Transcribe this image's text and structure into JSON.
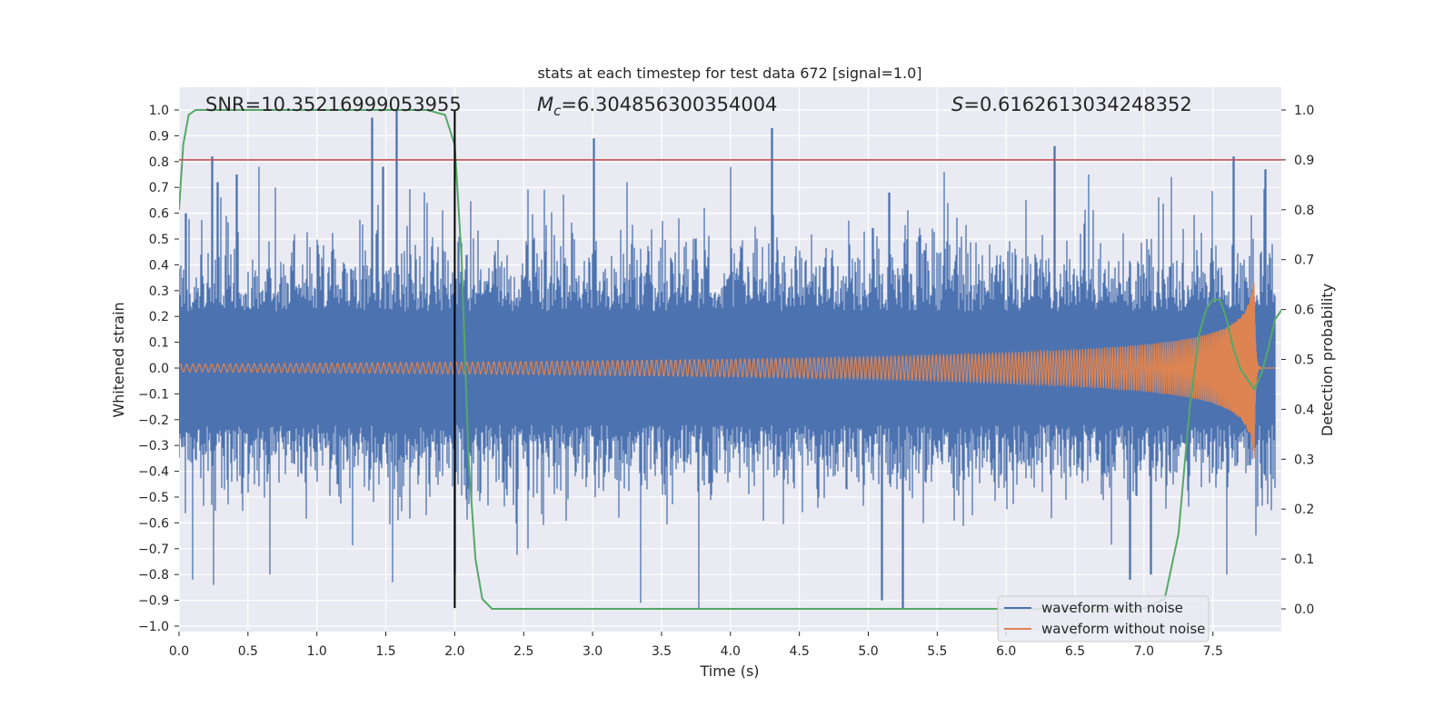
{
  "chart_data": {
    "type": "line",
    "title": "stats at each timestep for test data 672 [signal=1.0]",
    "xlabel": "Time (s)",
    "ylabel_left": "Whitened strain",
    "ylabel_right": "Detection probability",
    "xlim": [
      0.0,
      8.0
    ],
    "ylim_left": [
      -1.05,
      1.05
    ],
    "ylim_right": [
      -0.05,
      1.05
    ],
    "x_ticks": [
      "0.0",
      "0.5",
      "1.0",
      "1.5",
      "2.0",
      "2.5",
      "3.0",
      "3.5",
      "4.0",
      "4.5",
      "5.0",
      "5.5",
      "6.0",
      "6.5",
      "7.0",
      "7.5"
    ],
    "y_left_ticks": [
      "1.0",
      "0.9",
      "0.8",
      "0.7",
      "0.6",
      "0.5",
      "0.4",
      "0.3",
      "0.2",
      "0.1",
      "0.0",
      "−0.1",
      "−0.2",
      "−0.3",
      "−0.4",
      "−0.5",
      "−0.6",
      "−0.7",
      "−0.8",
      "−0.9",
      "−1.0"
    ],
    "y_right_ticks": [
      "1.0",
      "0.9",
      "0.8",
      "0.7",
      "0.6",
      "0.5",
      "0.4",
      "0.3",
      "0.2",
      "0.1",
      "0.0"
    ],
    "grid": true,
    "legend_position": "bottom-right",
    "annotations": {
      "snr": "SNR=10.35216999053955",
      "mc_symbol": "M",
      "mc_sub": "c",
      "mc_value": "=6.304856300354004",
      "s_symbol": "S",
      "s_value": "=0.6162613034248352"
    },
    "series": [
      {
        "name": "waveform with noise",
        "color": "#4c72b0",
        "axis": "left",
        "description_envelope": {
          "typical_pos": 0.4,
          "typical_neg": -0.4,
          "spikes": [
            [
              0.05,
              0.6
            ],
            [
              0.24,
              0.82
            ],
            [
              0.28,
              0.72
            ],
            [
              0.42,
              0.75
            ],
            [
              0.58,
              0.78
            ],
            [
              0.7,
              0.7
            ],
            [
              1.4,
              0.97
            ],
            [
              1.58,
              1.0
            ],
            [
              1.48,
              0.78
            ],
            [
              1.78,
              0.68
            ],
            [
              3.01,
              0.89
            ],
            [
              3.25,
              0.72
            ],
            [
              4.3,
              0.93
            ],
            [
              4.0,
              0.78
            ],
            [
              5.15,
              0.68
            ],
            [
              5.55,
              0.76
            ],
            [
              6.35,
              0.86
            ],
            [
              6.6,
              0.75
            ],
            [
              7.2,
              0.74
            ],
            [
              7.65,
              0.82
            ],
            [
              7.88,
              0.77
            ]
          ],
          "neg_spikes": [
            [
              0.1,
              -0.82
            ],
            [
              0.25,
              -0.84
            ],
            [
              0.66,
              -0.8
            ],
            [
              1.55,
              -0.83
            ],
            [
              2.0,
              -0.8
            ],
            [
              3.35,
              -0.91
            ],
            [
              3.77,
              -0.93
            ],
            [
              5.1,
              -0.9
            ],
            [
              5.25,
              -0.93
            ],
            [
              6.9,
              -0.82
            ],
            [
              7.05,
              -0.8
            ],
            [
              7.6,
              -0.8
            ]
          ]
        }
      },
      {
        "name": "waveform without noise",
        "color": "#dd8452",
        "axis": "left",
        "chirp": {
          "start_amp": 0.015,
          "end_amp": 0.36,
          "merger_time": 7.8,
          "f_start": 22,
          "f_end": 250
        }
      },
      {
        "name": "detection probability",
        "color": "#55a868",
        "axis": "right",
        "x": [
          0.0,
          0.03,
          0.07,
          0.12,
          0.2,
          0.5,
          1.0,
          1.5,
          1.8,
          1.93,
          2.0,
          2.05,
          2.1,
          2.15,
          2.2,
          2.27,
          2.35,
          2.5,
          3.0,
          4.0,
          5.0,
          6.0,
          7.0,
          7.15,
          7.25,
          7.33,
          7.4,
          7.45,
          7.5,
          7.55,
          7.6,
          7.65,
          7.7,
          7.75,
          7.8,
          7.85,
          7.9,
          7.95,
          8.0
        ],
        "y": [
          0.8,
          0.93,
          0.99,
          1.0,
          1.0,
          1.0,
          1.0,
          1.0,
          1.0,
          0.99,
          0.93,
          0.7,
          0.3,
          0.1,
          0.02,
          0.0,
          0.0,
          0.0,
          0.0,
          0.0,
          0.0,
          0.0,
          0.0,
          0.02,
          0.15,
          0.4,
          0.55,
          0.6,
          0.62,
          0.62,
          0.58,
          0.52,
          0.48,
          0.46,
          0.44,
          0.47,
          0.52,
          0.58,
          0.6
        ]
      }
    ],
    "reference_lines": [
      {
        "type": "horizontal",
        "axis": "right",
        "value": 0.9,
        "color": "#c44e52"
      },
      {
        "type": "vertical",
        "value": 2.0,
        "ymin_left": -0.93,
        "ymax_left": 1.0,
        "color": "#000000"
      }
    ],
    "legend_entries": [
      "waveform with noise",
      "waveform without noise"
    ]
  }
}
